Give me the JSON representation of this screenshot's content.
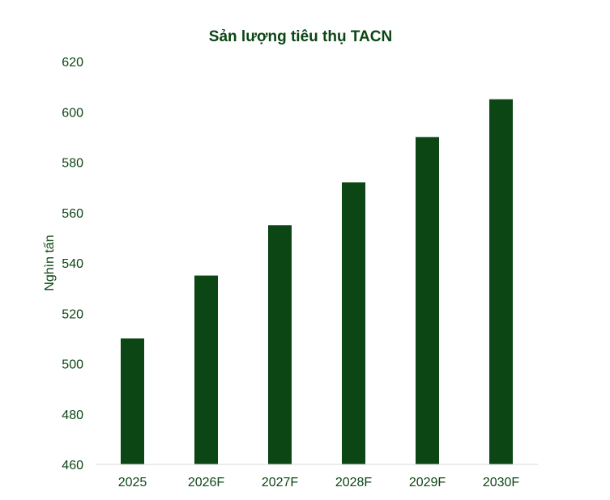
{
  "chart_data": {
    "type": "bar",
    "title": "Sản lượng tiêu thụ TACN",
    "xlabel": "",
    "ylabel": "Nghìn tấn",
    "categories": [
      "2025",
      "2026F",
      "2027F",
      "2028F",
      "2029F",
      "2030F"
    ],
    "values": [
      510,
      535,
      555,
      572,
      590,
      605
    ],
    "ylim": [
      460,
      620
    ],
    "yticks": [
      460,
      480,
      500,
      520,
      540,
      560,
      580,
      600,
      620
    ],
    "grid": false,
    "legend": "none",
    "colors": {
      "bar": "#0b4614",
      "title": "#0b4614",
      "axis_text": "#0b4614",
      "axis_line": "#d9d9d9"
    }
  }
}
